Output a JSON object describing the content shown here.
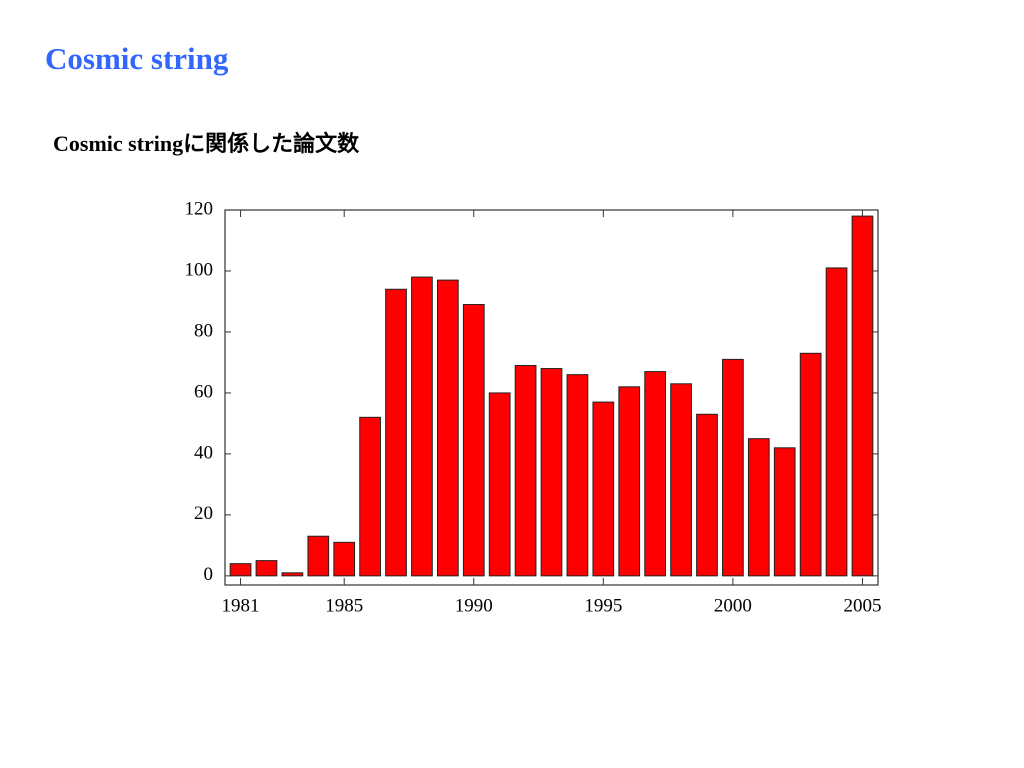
{
  "chart_data": {
    "type": "bar",
    "title": "Cosmic string",
    "subtitle": "Cosmic stringに関係した論文数",
    "x": [
      1981,
      1982,
      1983,
      1984,
      1985,
      1986,
      1987,
      1988,
      1989,
      1990,
      1991,
      1992,
      1993,
      1994,
      1995,
      1996,
      1997,
      1998,
      1999,
      2000,
      2001,
      2002,
      2003,
      2004,
      2005
    ],
    "values": [
      4,
      5,
      1,
      13,
      11,
      52,
      94,
      98,
      97,
      89,
      60,
      69,
      68,
      66,
      57,
      62,
      67,
      63,
      53,
      71,
      45,
      42,
      73,
      101,
      118
    ],
    "color": "#ff0000",
    "xlim": [
      1980.4,
      2005.6
    ],
    "xticks": [
      1981,
      1985,
      1990,
      1995,
      2000,
      2005
    ],
    "ylim": [
      -3,
      120
    ],
    "yticks": [
      0,
      20,
      40,
      60,
      80,
      100,
      120
    ],
    "grid": false
  }
}
